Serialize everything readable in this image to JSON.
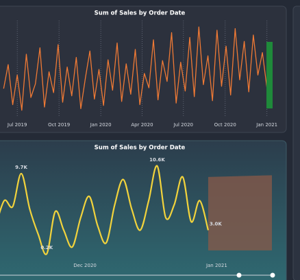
{
  "chart_data": [
    {
      "type": "line",
      "title": "Sum of Sales by Order Date",
      "color": "#f07a35",
      "xlim": [
        -38,
        567
      ],
      "ylim": [
        0,
        12000
      ],
      "grid": true,
      "xticks": [
        {
          "value": 0,
          "label": "Jul 2019"
        },
        {
          "value": 92,
          "label": "Oct 2019"
        },
        {
          "value": 184,
          "label": "Jan 2020"
        },
        {
          "value": 275,
          "label": "Apr 2020"
        },
        {
          "value": 366,
          "label": "Jul 2020"
        },
        {
          "value": 458,
          "label": "Oct 2020"
        },
        {
          "value": 550,
          "label": "Jan 2021"
        }
      ],
      "x": [
        -30,
        -20,
        -10,
        0,
        10,
        20,
        30,
        40,
        50,
        60,
        70,
        80,
        90,
        100,
        110,
        120,
        130,
        140,
        150,
        160,
        170,
        180,
        190,
        200,
        210,
        220,
        230,
        240,
        250,
        260,
        270,
        280,
        290,
        300,
        310,
        320,
        330,
        340,
        350,
        360,
        370,
        380,
        390,
        400,
        410,
        420,
        430,
        440,
        450,
        460,
        470,
        480,
        490,
        500,
        510,
        520,
        530,
        540,
        550,
        560
      ],
      "series": [
        {
          "values": [
            3500,
            6500,
            1500,
            5200,
            800,
            7800,
            2400,
            4100,
            8600,
            1200,
            5600,
            3000,
            9000,
            1800,
            6200,
            2600,
            7400,
            1000,
            4800,
            8200,
            2200,
            5900,
            1400,
            7100,
            3300,
            9200,
            1900,
            6600,
            2800,
            8400,
            1500,
            5400,
            3600,
            9600,
            2100,
            7000,
            4400,
            10500,
            1700,
            6800,
            3200,
            9900,
            2500,
            11200,
            4000,
            7600,
            2000,
            10800,
            3800,
            8800,
            2700,
            11000,
            4600,
            9400,
            3100,
            10200,
            5200,
            8000,
            3600,
            6200
          ]
        }
      ]
    },
    {
      "type": "line",
      "title": "Sum of Sales by Order Date",
      "color": "#f2d33c",
      "xlim": [
        -20,
        44
      ],
      "ylim": [
        -1600,
        11400
      ],
      "xticks": [
        {
          "value": 0,
          "label": "Dec 2020"
        },
        {
          "value": 31,
          "label": "Jan 2021"
        }
      ],
      "x": [
        -21,
        -19,
        -17,
        -15,
        -13,
        -11,
        -9,
        -7,
        -5,
        -3,
        -1,
        1,
        3,
        5,
        7,
        9,
        11,
        13,
        15,
        17,
        19,
        21,
        23,
        25,
        27,
        29
      ],
      "series": [
        {
          "values": [
            3500,
            6500,
            5800,
            9700,
            5500,
            2500,
            200,
            5200,
            3000,
            1000,
            4500,
            7000,
            3500,
            1500,
            6000,
            9000,
            5500,
            3000,
            6500,
            10600,
            4500,
            6000,
            9300,
            4000,
            6500,
            3000
          ],
          "value_labels": [
            null,
            null,
            null,
            "9.7K",
            null,
            null,
            "0.2K",
            null,
            null,
            null,
            null,
            null,
            null,
            null,
            null,
            null,
            null,
            null,
            null,
            "10.6K",
            null,
            null,
            null,
            null,
            null,
            "3.0K"
          ]
        }
      ],
      "forecast": {
        "x": [
          29,
          44
        ],
        "lower": [
          600,
          600
        ],
        "upper": [
          9300,
          9500
        ],
        "color": "#8a5a48"
      }
    }
  ]
}
